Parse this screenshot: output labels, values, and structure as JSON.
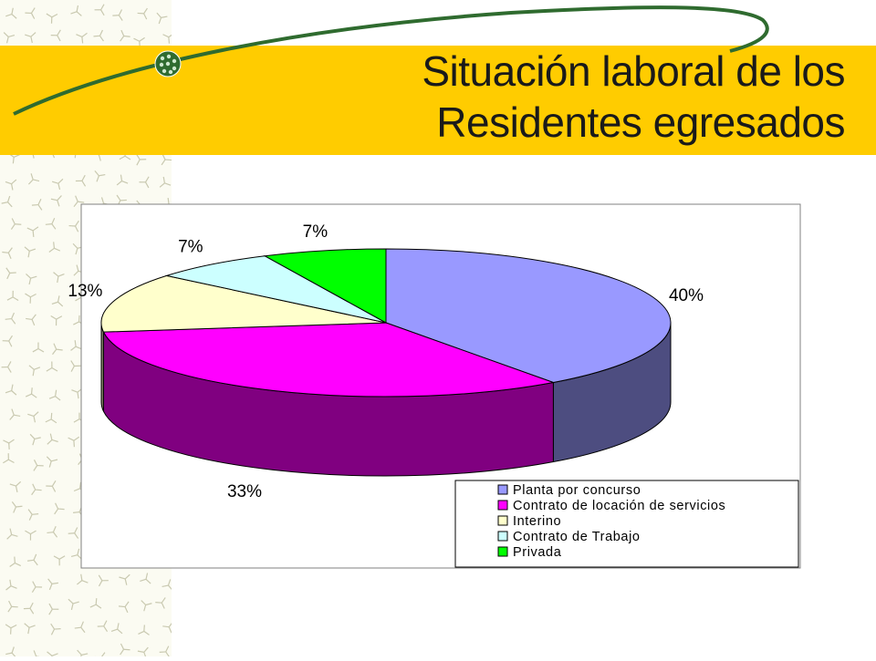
{
  "slide": {
    "title_line1": "Situación laboral de los",
    "title_line2": "Residentes egresados"
  },
  "colors": {
    "band": "#ffcc00",
    "swoosh": "#2f6b2f",
    "planta": "#9999ff",
    "contrato_locacion": "#ff00ff",
    "interino": "#ffffcc",
    "contrato_trabajo": "#ccffff",
    "privada": "#00ff00"
  },
  "chart_data": {
    "type": "pie",
    "three_d": true,
    "categories": [
      "Planta por concurso",
      "Contrato de locación de servicios",
      "Interino",
      "Contrato de Trabajo",
      "Privada"
    ],
    "values": [
      40,
      33,
      13,
      7,
      7
    ],
    "data_labels": [
      "40%",
      "33%",
      "13%",
      "7%",
      "7%"
    ],
    "colors": [
      "#9999ff",
      "#ff00ff",
      "#ffffcc",
      "#ccffff",
      "#00ff00"
    ],
    "side_colors": [
      "#4d4d80",
      "#800080",
      "#808066",
      "#668080",
      "#008000"
    ],
    "legend_position": "bottom-right"
  }
}
